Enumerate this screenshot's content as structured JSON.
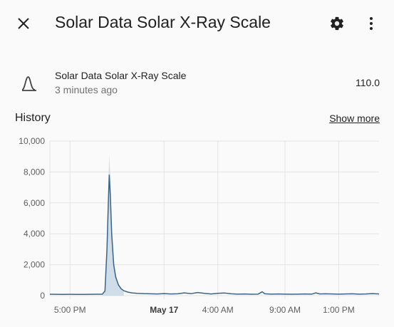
{
  "header": {
    "title": "Solar Data Solar X-Ray Scale",
    "icons": {
      "close": "close-icon",
      "settings": "gear-icon",
      "more": "more-vertical-icon"
    }
  },
  "entity": {
    "icon": "bell-curve-icon",
    "name": "Solar Data Solar X-Ray Scale",
    "last_changed": "3 minutes ago",
    "value": "110.0"
  },
  "history": {
    "title": "History",
    "show_more_label": "Show more"
  },
  "colors": {
    "line": "#3d6487",
    "band": "#bcd0e0",
    "grid": "#e4e4e4"
  },
  "chart_data": {
    "type": "line",
    "ylim": [
      0,
      10000
    ],
    "y_ticks": [
      {
        "value": 0,
        "label": "0"
      },
      {
        "value": 2000,
        "label": "2,000"
      },
      {
        "value": 4000,
        "label": "4,000"
      },
      {
        "value": 6000,
        "label": "6,000"
      },
      {
        "value": 8000,
        "label": "8,000"
      },
      {
        "value": 10000,
        "label": "10,000"
      }
    ],
    "xlim": [
      15.5,
      40.0
    ],
    "x_ticks": [
      {
        "value": 17,
        "label": "5:00 PM",
        "bold": false
      },
      {
        "value": 24,
        "label": "May 17",
        "bold": true
      },
      {
        "value": 28,
        "label": "4:00 AM",
        "bold": false
      },
      {
        "value": 33,
        "label": "9:00 AM",
        "bold": false
      },
      {
        "value": 37,
        "label": "1:00 PM",
        "bold": false
      }
    ],
    "x_unit": "hours since start of May 16",
    "series": [
      {
        "points": [
          [
            15.5,
            90
          ],
          [
            16,
            85
          ],
          [
            16.5,
            80
          ],
          [
            17,
            85
          ],
          [
            17.5,
            80
          ],
          [
            18,
            80
          ],
          [
            18.5,
            85
          ],
          [
            19,
            90
          ],
          [
            19.4,
            95
          ],
          [
            19.6,
            300
          ],
          [
            19.75,
            3000
          ],
          [
            19.85,
            6000
          ],
          [
            19.92,
            7800
          ],
          [
            20.0,
            6500
          ],
          [
            20.1,
            4000
          ],
          [
            20.25,
            2000
          ],
          [
            20.4,
            1200
          ],
          [
            20.6,
            700
          ],
          [
            20.8,
            450
          ],
          [
            21,
            320
          ],
          [
            21.3,
            230
          ],
          [
            21.6,
            180
          ],
          [
            22,
            150
          ],
          [
            22.5,
            130
          ],
          [
            23,
            120
          ],
          [
            23.5,
            110
          ],
          [
            24,
            130
          ],
          [
            24.5,
            110
          ],
          [
            25,
            120
          ],
          [
            25.5,
            180
          ],
          [
            26,
            130
          ],
          [
            26.5,
            200
          ],
          [
            27,
            150
          ],
          [
            27.5,
            110
          ],
          [
            28,
            150
          ],
          [
            28.5,
            170
          ],
          [
            29,
            120
          ],
          [
            29.5,
            100
          ],
          [
            30,
            110
          ],
          [
            30.5,
            90
          ],
          [
            31,
            100
          ],
          [
            31.3,
            250
          ],
          [
            31.5,
            120
          ],
          [
            32,
            100
          ],
          [
            32.5,
            110
          ],
          [
            33,
            100
          ],
          [
            33.5,
            90
          ],
          [
            34,
            100
          ],
          [
            34.5,
            110
          ],
          [
            35,
            100
          ],
          [
            35.3,
            180
          ],
          [
            35.6,
            110
          ],
          [
            36,
            120
          ],
          [
            36.5,
            110
          ],
          [
            37,
            100
          ],
          [
            37.5,
            110
          ],
          [
            38,
            120
          ],
          [
            38.5,
            100
          ],
          [
            39,
            110
          ],
          [
            39.5,
            130
          ],
          [
            40,
            110
          ]
        ],
        "band_max": [
          [
            19.4,
            100
          ],
          [
            19.6,
            400
          ],
          [
            19.75,
            3800
          ],
          [
            19.85,
            7200
          ],
          [
            19.92,
            9100
          ],
          [
            20.0,
            7600
          ],
          [
            20.1,
            4800
          ],
          [
            20.25,
            2400
          ],
          [
            20.4,
            1400
          ],
          [
            20.6,
            800
          ],
          [
            20.8,
            480
          ],
          [
            21,
            340
          ]
        ]
      }
    ]
  }
}
